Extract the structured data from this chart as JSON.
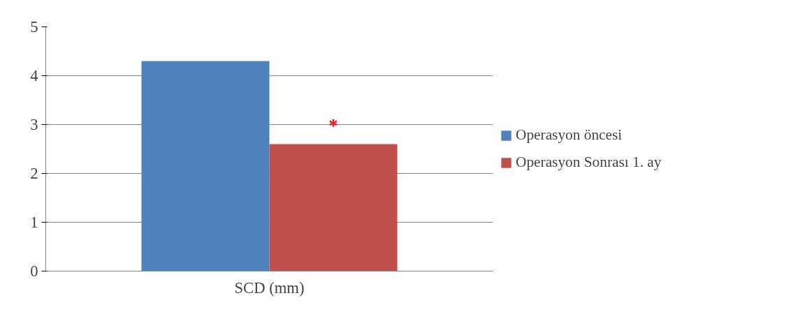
{
  "chart_data": {
    "type": "bar",
    "categories": [
      "SCD (mm)"
    ],
    "series": [
      {
        "name": "Operasyon öncesi",
        "color": "#4f81bd",
        "values": [
          4.3
        ]
      },
      {
        "name": "Operasyon Sonrası 1. ay",
        "color": "#c0504d",
        "values": [
          2.6
        ]
      }
    ],
    "ylim": [
      0,
      5
    ],
    "yticks": [
      0,
      1,
      2,
      3,
      4,
      5
    ],
    "grid": "y",
    "legend": "right",
    "annotations": [
      "*"
    ]
  }
}
